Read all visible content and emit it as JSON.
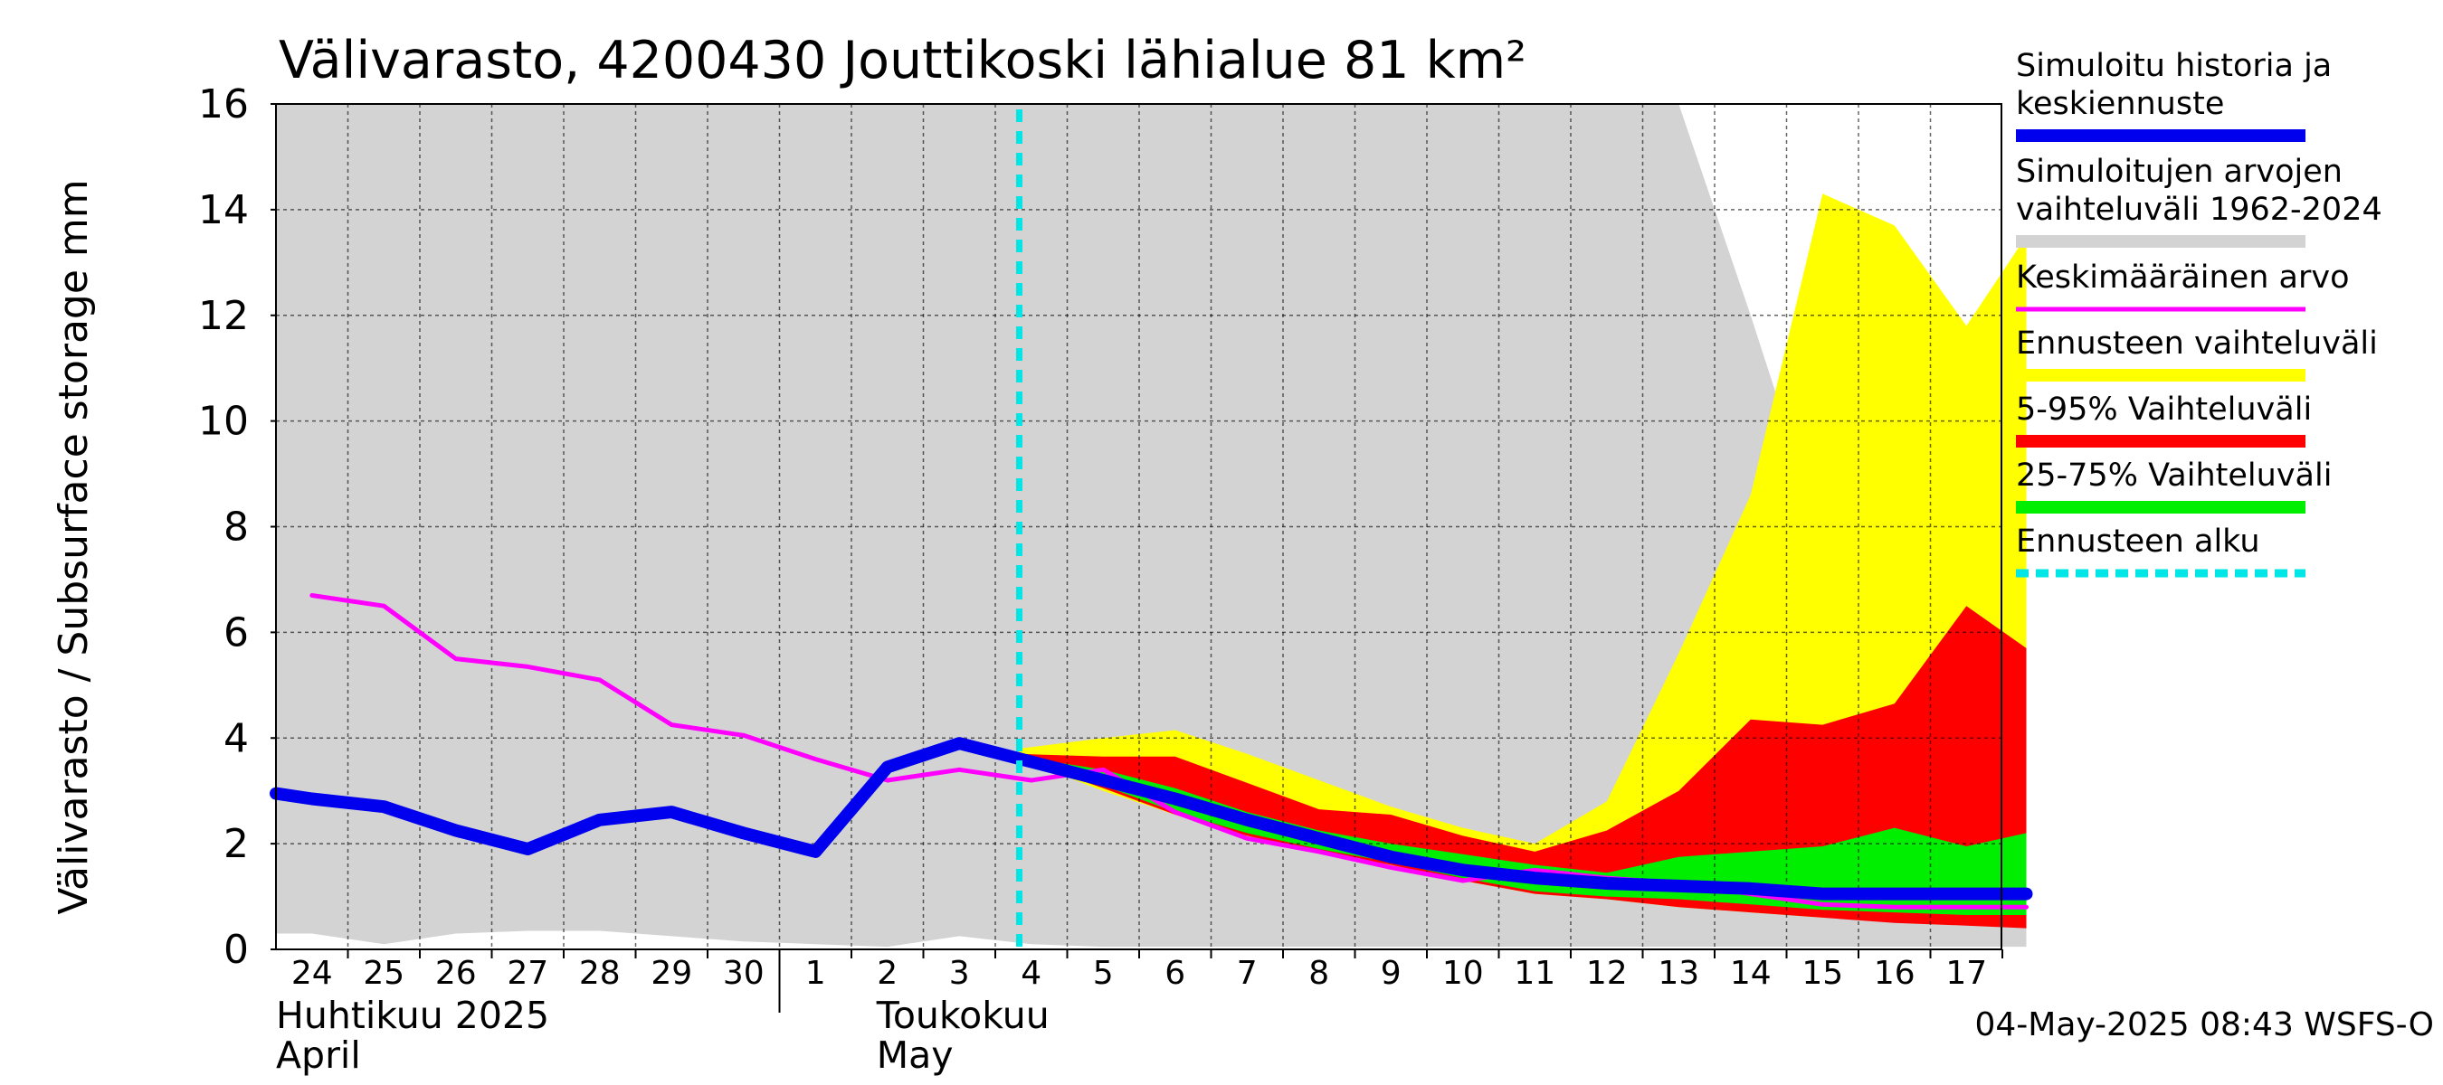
{
  "chart_data": {
    "type": "area",
    "title": "Välivarasto, 4200430 Jouttikoski lähialue 81 km²",
    "ylabel": "Välivarasto / Subsurface storage  mm",
    "ylim": [
      0,
      16
    ],
    "yticks": [
      "0",
      "2",
      "4",
      "6",
      "8",
      "10",
      "12",
      "14",
      "16"
    ],
    "grid": true,
    "legend_position": "right",
    "x_dates": [
      "2025-04-24",
      "2025-04-25",
      "2025-04-26",
      "2025-04-27",
      "2025-04-28",
      "2025-04-29",
      "2025-04-30",
      "2025-05-01",
      "2025-05-02",
      "2025-05-03",
      "2025-05-04",
      "2025-05-05",
      "2025-05-06",
      "2025-05-07",
      "2025-05-08",
      "2025-05-09",
      "2025-05-10",
      "2025-05-11",
      "2025-05-12",
      "2025-05-13",
      "2025-05-14",
      "2025-05-15",
      "2025-05-16",
      "2025-05-17"
    ],
    "x_tick_labels": [
      "24",
      "25",
      "26",
      "27",
      "28",
      "29",
      "30",
      "1",
      "2",
      "3",
      "4",
      "5",
      "6",
      "7",
      "8",
      "9",
      "10",
      "11",
      "12",
      "13",
      "14",
      "15",
      "16",
      "17"
    ],
    "month_labels": [
      {
        "fi": "Huhtikuu  2025",
        "en": "April"
      },
      {
        "fi": "Toukokuu",
        "en": "May"
      }
    ],
    "forecast_start": "2025-05-03T20:00",
    "series": [
      {
        "name": "Simuloitujen arvojen vaihteluväli 1962-2024",
        "kind": "range",
        "color": "#d3d3d3",
        "x": [
          "2025-04-23T12:00",
          "2025-04-24",
          "2025-04-25",
          "2025-04-26",
          "2025-04-27",
          "2025-04-28",
          "2025-04-29",
          "2025-04-30",
          "2025-05-01",
          "2025-05-02",
          "2025-05-03",
          "2025-05-04",
          "2025-05-05",
          "2025-05-06",
          "2025-05-07",
          "2025-05-08",
          "2025-05-09",
          "2025-05-10",
          "2025-05-11",
          "2025-05-12",
          "2025-05-13",
          "2025-05-14",
          "2025-05-15",
          "2025-05-16",
          "2025-05-17",
          "2025-05-17T20:00"
        ],
        "low": [
          0.3,
          0.3,
          0.1,
          0.3,
          0.35,
          0.35,
          0.25,
          0.15,
          0.1,
          0.05,
          0.25,
          0.1,
          0.05,
          0.05,
          0.05,
          0.05,
          0.05,
          0.05,
          0.05,
          0.05,
          0.05,
          0.05,
          0.05,
          0.05,
          0.05,
          0.05
        ],
        "high": [
          16,
          16,
          16,
          16,
          16,
          16,
          16,
          16,
          16,
          16,
          16,
          16,
          16,
          16,
          16,
          16,
          16,
          16,
          16,
          16,
          16,
          12,
          7.8,
          6.6,
          8.4,
          6.5
        ]
      },
      {
        "name": "Ennusteen vaihteluväli",
        "kind": "range",
        "color": "#ffff00",
        "x": [
          "2025-05-03T20:00",
          "2025-05-05",
          "2025-05-06",
          "2025-05-07",
          "2025-05-08",
          "2025-05-09",
          "2025-05-10",
          "2025-05-11",
          "2025-05-12",
          "2025-05-13",
          "2025-05-14",
          "2025-05-15",
          "2025-05-16",
          "2025-05-17",
          "2025-05-17T20:00"
        ],
        "low": [
          3.6,
          3.0,
          2.55,
          2.15,
          1.85,
          1.55,
          1.3,
          1.05,
          0.95,
          0.8,
          0.7,
          0.6,
          0.55,
          0.5,
          0.45
        ],
        "high": [
          3.8,
          4.0,
          4.15,
          3.7,
          3.2,
          2.7,
          2.3,
          2.0,
          2.8,
          5.6,
          8.6,
          14.3,
          13.7,
          11.8,
          13.5
        ]
      },
      {
        "name": "5-95% Vaihteluväli",
        "kind": "range",
        "color": "#ff0000",
        "x": [
          "2025-05-03T20:00",
          "2025-05-05",
          "2025-05-06",
          "2025-05-07",
          "2025-05-08",
          "2025-05-09",
          "2025-05-10",
          "2025-05-11",
          "2025-05-12",
          "2025-05-13",
          "2025-05-14",
          "2025-05-15",
          "2025-05-16",
          "2025-05-17",
          "2025-05-17T20:00"
        ],
        "low": [
          3.6,
          3.05,
          2.55,
          2.15,
          1.85,
          1.6,
          1.3,
          1.05,
          0.95,
          0.8,
          0.7,
          0.6,
          0.5,
          0.45,
          0.4
        ],
        "high": [
          3.7,
          3.65,
          3.65,
          3.15,
          2.65,
          2.55,
          2.15,
          1.85,
          2.25,
          3.0,
          4.35,
          4.25,
          4.65,
          6.5,
          5.7
        ]
      },
      {
        "name": "25-75% Vaihteluväli",
        "kind": "range",
        "color": "#00ee00",
        "x": [
          "2025-05-03T20:00",
          "2025-05-05",
          "2025-05-06",
          "2025-05-07",
          "2025-05-08",
          "2025-05-09",
          "2025-05-10",
          "2025-05-11",
          "2025-05-12",
          "2025-05-13",
          "2025-05-14",
          "2025-05-15",
          "2025-05-16",
          "2025-05-17",
          "2025-05-17T20:00"
        ],
        "low": [
          3.6,
          3.1,
          2.6,
          2.2,
          1.9,
          1.65,
          1.35,
          1.1,
          1.0,
          0.95,
          0.85,
          0.75,
          0.7,
          0.65,
          0.65
        ],
        "high": [
          3.65,
          3.4,
          3.05,
          2.6,
          2.25,
          2.0,
          1.8,
          1.6,
          1.45,
          1.75,
          1.85,
          1.95,
          2.3,
          1.95,
          2.2
        ]
      },
      {
        "name": "Keskimääräinen arvo",
        "kind": "line",
        "color": "#ff00ff",
        "x": [
          "2025-04-24",
          "2025-04-25",
          "2025-04-26",
          "2025-04-27",
          "2025-04-28",
          "2025-04-29",
          "2025-04-30",
          "2025-05-01",
          "2025-05-02",
          "2025-05-03",
          "2025-05-04",
          "2025-05-05",
          "2025-05-06",
          "2025-05-07",
          "2025-05-08",
          "2025-05-09",
          "2025-05-10",
          "2025-05-11",
          "2025-05-12",
          "2025-05-13",
          "2025-05-14",
          "2025-05-15",
          "2025-05-16",
          "2025-05-17",
          "2025-05-17T20:00"
        ],
        "values": [
          6.7,
          6.5,
          5.5,
          5.35,
          5.1,
          4.25,
          4.05,
          3.6,
          3.2,
          3.4,
          3.2,
          3.4,
          2.6,
          2.1,
          1.85,
          1.55,
          1.3,
          1.5,
          1.35,
          1.25,
          1.05,
          0.85,
          0.8,
          0.8,
          0.8
        ]
      },
      {
        "name": "Simuloitu historia ja keskiennuste",
        "kind": "line",
        "color": "#0000ee",
        "x": [
          "2025-04-23T12:00",
          "2025-04-24",
          "2025-04-25",
          "2025-04-26",
          "2025-04-27",
          "2025-04-28",
          "2025-04-29",
          "2025-04-30",
          "2025-05-01",
          "2025-05-02",
          "2025-05-03",
          "2025-05-04",
          "2025-05-05",
          "2025-05-06",
          "2025-05-07",
          "2025-05-08",
          "2025-05-09",
          "2025-05-10",
          "2025-05-11",
          "2025-05-12",
          "2025-05-13",
          "2025-05-14",
          "2025-05-15",
          "2025-05-16",
          "2025-05-17",
          "2025-05-17T20:00"
        ],
        "values": [
          2.95,
          2.85,
          2.7,
          2.25,
          1.9,
          2.45,
          2.6,
          2.2,
          1.85,
          3.45,
          3.9,
          3.55,
          3.2,
          2.85,
          2.45,
          2.1,
          1.75,
          1.5,
          1.35,
          1.25,
          1.2,
          1.15,
          1.05,
          1.05,
          1.05,
          1.05
        ]
      },
      {
        "name": "Ennusteen alku",
        "kind": "marker",
        "color": "#00e5e5"
      }
    ],
    "legend": [
      {
        "label": "Simuloitu historia ja keskiennuste",
        "color": "#0000ee",
        "style": "thick"
      },
      {
        "label": "Simuloitujen arvojen vaihteluväli 1962-2024",
        "color": "#d3d3d3",
        "style": "thick"
      },
      {
        "label": "Keskimääräinen arvo",
        "color": "#ff00ff",
        "style": "thin"
      },
      {
        "label": "Ennusteen vaihteluväli",
        "color": "#ffff00",
        "style": "thick"
      },
      {
        "label": "5-95% Vaihteluväli",
        "color": "#ff0000",
        "style": "thick"
      },
      {
        "label": "25-75% Vaihteluväli",
        "color": "#00ee00",
        "style": "thick"
      },
      {
        "label": "Ennusteen alku",
        "color": "#00e5e5",
        "style": "dashed"
      }
    ],
    "timestamp": "04-May-2025 08:43 WSFS-O"
  }
}
